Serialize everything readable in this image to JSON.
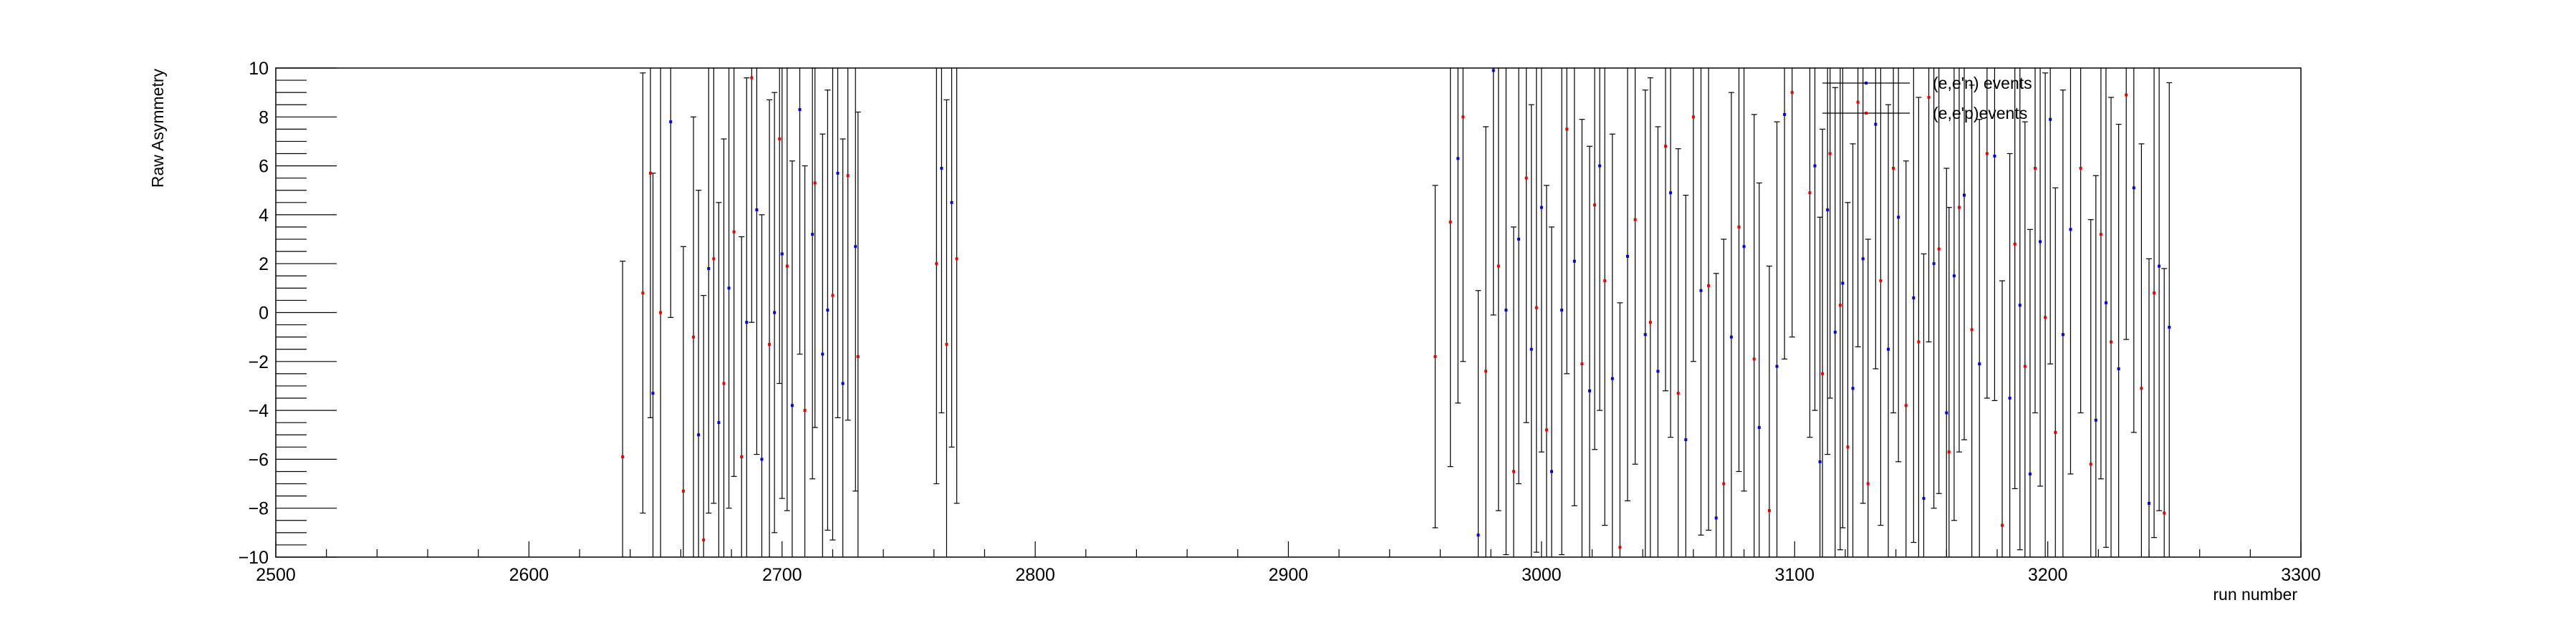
{
  "chart_data": {
    "type": "scatter",
    "title": "",
    "xlabel": "run number",
    "ylabel": "Raw Asymmetry",
    "xlim": [
      2500,
      3300
    ],
    "ylim": [
      -10,
      10
    ],
    "x_ticks": [
      "2500",
      "2600",
      "2700",
      "2800",
      "2900",
      "3000",
      "3100",
      "3200",
      "3300"
    ],
    "y_ticks": [
      "−10",
      "−8",
      "−6",
      "−4",
      "−2",
      "0",
      "2",
      "4",
      "6",
      "8",
      "10"
    ],
    "grid": false,
    "legend": {
      "position": "top-right",
      "entries": [
        "(e,e'n) events",
        "(e,e'p)events"
      ]
    },
    "series": [
      {
        "name": "(e,e'n) events",
        "color": "#0000cc",
        "x": [
          2649,
          2656,
          2667,
          2671,
          2675,
          2679,
          2686,
          2690,
          2692,
          2697,
          2700,
          2704,
          2707,
          2712,
          2716,
          2718,
          2722,
          2724,
          2729,
          2763,
          2767,
          2967,
          2975,
          2981,
          2986,
          2991,
          2996,
          3000,
          3004,
          3008,
          3013,
          3019,
          3023,
          3028,
          3034,
          3041,
          3046,
          3051,
          3057,
          3063,
          3069,
          3075,
          3080,
          3086,
          3093,
          3096,
          3108,
          3110,
          3113,
          3116,
          3119,
          3123,
          3127,
          3132,
          3137,
          3141,
          3147,
          3151,
          3155,
          3160,
          3163,
          3167,
          3173,
          3179,
          3185,
          3189,
          3193,
          3197,
          3201,
          3206,
          3209,
          3219,
          3223,
          3228,
          3234,
          3240,
          3244,
          3248
        ],
        "y": [
          -3.3,
          7.8,
          -5.0,
          1.8,
          -4.5,
          1.0,
          -0.4,
          4.2,
          -6.0,
          0.0,
          2.4,
          -3.8,
          8.3,
          3.2,
          -1.7,
          0.1,
          5.7,
          -2.9,
          2.7,
          5.9,
          4.5,
          6.3,
          -9.1,
          9.9,
          0.1,
          3.0,
          -1.5,
          4.3,
          -6.5,
          0.1,
          2.1,
          -3.2,
          6.0,
          -2.7,
          2.3,
          -0.9,
          -2.4,
          4.9,
          -5.2,
          0.9,
          -8.4,
          -1.0,
          2.7,
          -4.7,
          -2.2,
          8.1,
          6.0,
          -6.1,
          4.2,
          -0.8,
          1.2,
          -3.1,
          2.2,
          7.7,
          -1.5,
          3.9,
          0.6,
          -7.6,
          2.0,
          -4.1,
          1.5,
          4.8,
          -2.1,
          6.4,
          -3.5,
          0.3,
          -6.6,
          2.9,
          7.9,
          -0.9,
          3.4,
          -4.4,
          0.4,
          -2.3,
          5.1,
          -7.8,
          1.9,
          -0.6
        ],
        "err": [
          9,
          8,
          10,
          10,
          9,
          9,
          10,
          10,
          10,
          9,
          10,
          10,
          10,
          10,
          9,
          9,
          10,
          10,
          10,
          10,
          10,
          10,
          10,
          10,
          10,
          10,
          10,
          10,
          10,
          10,
          10,
          10,
          10,
          10,
          10,
          10,
          10,
          10,
          10,
          10,
          10,
          10,
          10,
          10,
          10,
          10,
          10,
          10,
          10,
          10,
          10,
          10,
          10,
          10,
          10,
          10,
          10,
          10,
          10,
          10,
          10,
          10,
          10,
          10,
          10,
          10,
          10,
          10,
          10,
          10,
          10,
          10,
          10,
          10,
          10,
          10,
          10,
          10
        ]
      },
      {
        "name": "(e,e'p)events",
        "color": "#e60000",
        "x": [
          2637,
          2645,
          2648,
          2652,
          2661,
          2665,
          2669,
          2673,
          2677,
          2681,
          2684,
          2688,
          2695,
          2699,
          2702,
          2709,
          2713,
          2720,
          2726,
          2730,
          2761,
          2765,
          2769,
          2958,
          2964,
          2969,
          2978,
          2983,
          2989,
          2994,
          2998,
          3002,
          3010,
          3016,
          3021,
          3025,
          3031,
          3037,
          3043,
          3049,
          3054,
          3060,
          3066,
          3072,
          3078,
          3084,
          3090,
          3099,
          3106,
          3111,
          3114,
          3118,
          3121,
          3125,
          3129,
          3134,
          3139,
          3144,
          3149,
          3153,
          3157,
          3161,
          3165,
          3170,
          3176,
          3182,
          3187,
          3191,
          3195,
          3199,
          3203,
          3213,
          3217,
          3221,
          3225,
          3231,
          3237,
          3242,
          3246
        ],
        "y": [
          -5.9,
          0.8,
          5.7,
          0.0,
          -7.3,
          -1.0,
          -9.3,
          2.2,
          -2.9,
          3.3,
          -5.9,
          9.6,
          -1.3,
          7.1,
          1.9,
          -4.0,
          5.3,
          0.7,
          5.6,
          -1.8,
          2.0,
          -1.3,
          2.2,
          -1.8,
          3.7,
          8.0,
          -2.4,
          1.9,
          -6.5,
          5.5,
          0.2,
          -4.8,
          7.5,
          -2.1,
          4.4,
          1.3,
          -9.6,
          3.8,
          -0.4,
          6.8,
          -3.3,
          8.0,
          1.1,
          -7.0,
          3.5,
          -1.9,
          -8.1,
          9.0,
          4.9,
          -2.5,
          6.5,
          0.3,
          -5.5,
          8.6,
          -7.0,
          1.3,
          5.9,
          -3.8,
          -1.2,
          8.8,
          2.6,
          -5.7,
          4.3,
          -0.7,
          6.5,
          -8.7,
          2.8,
          -2.2,
          5.9,
          -0.2,
          -4.9,
          5.9,
          -6.2,
          3.2,
          -1.2,
          8.9,
          -3.1,
          0.8,
          -8.2
        ],
        "err": [
          8,
          9,
          10,
          10,
          10,
          9,
          10,
          10,
          10,
          10,
          9,
          10,
          10,
          10,
          10,
          10,
          10,
          10,
          10,
          10,
          9,
          10,
          10,
          7,
          10,
          10,
          10,
          10,
          10,
          10,
          10,
          10,
          10,
          10,
          10,
          10,
          10,
          10,
          10,
          10,
          10,
          10,
          10,
          10,
          10,
          10,
          10,
          10,
          10,
          10,
          10,
          10,
          10,
          10,
          10,
          10,
          10,
          10,
          10,
          10,
          10,
          10,
          10,
          10,
          10,
          10,
          10,
          10,
          10,
          10,
          10,
          10,
          10,
          10,
          10,
          10,
          10,
          10,
          10
        ]
      }
    ]
  }
}
